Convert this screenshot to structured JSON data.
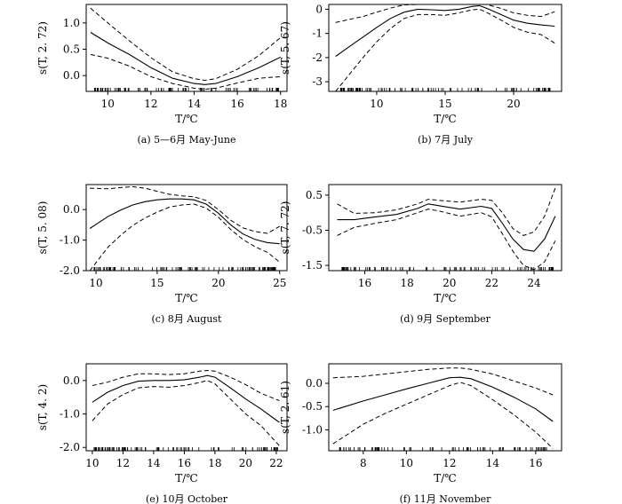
{
  "figure": {
    "x_axis_label": "T/℃"
  },
  "chart_data": [
    {
      "type": "line",
      "id": "a",
      "caption": "(a) 5—6月 May-June",
      "ylabel": "s(T, 2. 72)",
      "xlim": [
        9,
        18.3
      ],
      "ylim": [
        -0.3,
        1.35
      ],
      "xticks": [
        10,
        12,
        14,
        16,
        18
      ],
      "yticks": [
        {
          "v": 1.0,
          "label": "1.0"
        },
        {
          "v": 0.5,
          "label": "0.5"
        },
        {
          "v": 0.0,
          "label": "0.0"
        }
      ],
      "series": [
        {
          "name": "fit",
          "x": [
            9.2,
            10,
            11,
            12,
            13,
            14,
            14.5,
            15,
            16,
            17,
            18
          ],
          "values": [
            0.82,
            0.62,
            0.4,
            0.15,
            -0.05,
            -0.15,
            -0.17,
            -0.15,
            -0.02,
            0.15,
            0.35
          ]
        },
        {
          "name": "upper",
          "x": [
            9.2,
            10,
            11,
            12,
            13,
            14,
            14.5,
            15,
            16,
            17,
            18
          ],
          "values": [
            1.28,
            1.0,
            0.66,
            0.34,
            0.07,
            -0.06,
            -0.09,
            -0.06,
            0.12,
            0.38,
            0.72
          ]
        },
        {
          "name": "lower",
          "x": [
            9.2,
            10,
            11,
            12,
            13,
            14,
            14.5,
            15,
            16,
            17,
            18
          ],
          "values": [
            0.4,
            0.33,
            0.18,
            -0.02,
            -0.15,
            -0.24,
            -0.26,
            -0.24,
            -0.14,
            -0.05,
            -0.02
          ]
        }
      ],
      "rug": {
        "from": 9.3,
        "to": 18.0,
        "count": 95
      }
    },
    {
      "type": "line",
      "id": "b",
      "caption": "(b) 7月 July",
      "ylabel": "s(T, 5. 67)",
      "xlim": [
        6.5,
        23.5
      ],
      "ylim": [
        -3.4,
        0.2
      ],
      "xticks": [
        10,
        15,
        20
      ],
      "yticks": [
        {
          "v": 0,
          "label": "0"
        },
        {
          "v": -1,
          "label": "-1"
        },
        {
          "v": -2,
          "label": "-2"
        },
        {
          "v": -3,
          "label": "-3"
        }
      ],
      "series": [
        {
          "name": "fit",
          "x": [
            7,
            8,
            9,
            10,
            11,
            12,
            13,
            14,
            15,
            16,
            17,
            17.5,
            18,
            19,
            20,
            21,
            22,
            23
          ],
          "values": [
            -1.95,
            -1.55,
            -1.15,
            -0.75,
            -0.38,
            -0.12,
            0.0,
            -0.02,
            -0.05,
            0.0,
            0.12,
            0.15,
            0.05,
            -0.2,
            -0.45,
            -0.58,
            -0.65,
            -0.7
          ]
        },
        {
          "name": "upper",
          "x": [
            7,
            8,
            9,
            10,
            11,
            12,
            13,
            14,
            15,
            16,
            17,
            17.5,
            18,
            19,
            20,
            21,
            22,
            23
          ],
          "values": [
            -0.55,
            -0.42,
            -0.3,
            -0.12,
            0.05,
            0.18,
            0.25,
            0.25,
            0.2,
            0.2,
            0.25,
            0.28,
            0.2,
            0.05,
            -0.15,
            -0.25,
            -0.3,
            -0.1
          ]
        },
        {
          "name": "lower",
          "x": [
            7,
            8,
            9,
            10,
            11,
            12,
            13,
            14,
            15,
            16,
            17,
            17.5,
            18,
            19,
            20,
            21,
            22,
            23
          ],
          "values": [
            -3.4,
            -2.7,
            -2.0,
            -1.35,
            -0.8,
            -0.38,
            -0.22,
            -0.22,
            -0.25,
            -0.15,
            -0.02,
            0.0,
            -0.12,
            -0.42,
            -0.75,
            -0.95,
            -1.05,
            -1.4
          ]
        }
      ],
      "rug": {
        "from": 7.2,
        "to": 22.8,
        "count": 110
      }
    },
    {
      "type": "line",
      "id": "c",
      "caption": "(c) 8月 August",
      "ylabel": "s(T, 5. 08)",
      "xlim": [
        9.2,
        25.6
      ],
      "ylim": [
        -2.0,
        0.82
      ],
      "xticks": [
        10,
        15,
        20,
        25
      ],
      "yticks": [
        {
          "v": 0.0,
          "label": "0.0"
        },
        {
          "v": -1.0,
          "label": "-1.0"
        },
        {
          "v": -2.0,
          "label": "-2.0"
        }
      ],
      "series": [
        {
          "name": "fit",
          "x": [
            9.5,
            11,
            12,
            13,
            14,
            15,
            16,
            17,
            18,
            19,
            20,
            21,
            22,
            23,
            24,
            25
          ],
          "values": [
            -0.62,
            -0.22,
            -0.02,
            0.15,
            0.26,
            0.32,
            0.35,
            0.35,
            0.32,
            0.18,
            -0.12,
            -0.5,
            -0.8,
            -0.98,
            -1.08,
            -1.12
          ]
        },
        {
          "name": "upper",
          "x": [
            9.5,
            11,
            12,
            13,
            14,
            15,
            16,
            17,
            18,
            19,
            20,
            21,
            22,
            23,
            24,
            25
          ],
          "values": [
            0.7,
            0.68,
            0.72,
            0.75,
            0.7,
            0.6,
            0.5,
            0.45,
            0.42,
            0.3,
            0.0,
            -0.35,
            -0.6,
            -0.72,
            -0.78,
            -0.55
          ]
        },
        {
          "name": "lower",
          "x": [
            9.5,
            11,
            12,
            13,
            14,
            15,
            16,
            17,
            18,
            19,
            20,
            21,
            22,
            23,
            24,
            25
          ],
          "values": [
            -2.0,
            -1.22,
            -0.85,
            -0.52,
            -0.28,
            -0.08,
            0.08,
            0.15,
            0.18,
            0.05,
            -0.25,
            -0.65,
            -0.98,
            -1.22,
            -1.4,
            -1.72
          ]
        }
      ],
      "rug": {
        "from": 9.7,
        "to": 24.8,
        "count": 120
      }
    },
    {
      "type": "line",
      "id": "d",
      "caption": "(d) 9月 September",
      "ylabel": "s(T, 7. 72)",
      "xlim": [
        14.3,
        25.3
      ],
      "ylim": [
        -1.65,
        0.8
      ],
      "xticks": [
        16,
        18,
        20,
        22,
        24
      ],
      "yticks": [
        {
          "v": 0.5,
          "label": "0.5"
        },
        {
          "v": -0.5,
          "label": "-0.5"
        },
        {
          "v": -1.5,
          "label": "-1.5"
        }
      ],
      "series": [
        {
          "name": "fit",
          "x": [
            14.7,
            15.5,
            16.5,
            17.5,
            18.5,
            19.0,
            19.5,
            20.5,
            21.5,
            22.0,
            22.5,
            23.0,
            23.5,
            24.0,
            24.5,
            25.0
          ],
          "values": [
            -0.2,
            -0.2,
            -0.12,
            -0.05,
            0.12,
            0.25,
            0.2,
            0.1,
            0.18,
            0.12,
            -0.3,
            -0.75,
            -1.05,
            -1.1,
            -0.75,
            -0.1
          ]
        },
        {
          "name": "upper",
          "x": [
            14.7,
            15.5,
            16.5,
            17.5,
            18.5,
            19.0,
            19.5,
            20.5,
            21.5,
            22.0,
            22.5,
            23.0,
            23.5,
            24.0,
            24.5,
            25.0
          ],
          "values": [
            0.25,
            -0.02,
            0.0,
            0.08,
            0.25,
            0.38,
            0.35,
            0.3,
            0.38,
            0.35,
            0.0,
            -0.45,
            -0.65,
            -0.55,
            -0.1,
            0.7
          ]
        },
        {
          "name": "lower",
          "x": [
            14.7,
            15.5,
            16.5,
            17.5,
            18.5,
            19.0,
            19.5,
            20.5,
            21.5,
            22.0,
            22.5,
            23.0,
            23.5,
            24.0,
            24.5,
            25.0
          ],
          "values": [
            -0.65,
            -0.42,
            -0.3,
            -0.2,
            0.0,
            0.1,
            0.05,
            -0.1,
            0.0,
            -0.12,
            -0.6,
            -1.1,
            -1.5,
            -1.62,
            -1.4,
            -0.8
          ]
        }
      ],
      "rug": {
        "from": 14.8,
        "to": 25.0,
        "count": 100
      }
    },
    {
      "type": "line",
      "id": "e",
      "caption": "(e) 10月 October",
      "ylabel": "s(T, 4. 2)",
      "xlim": [
        9.6,
        22.7
      ],
      "ylim": [
        -2.1,
        0.5
      ],
      "xticks": [
        10,
        12,
        14,
        16,
        18,
        20,
        22
      ],
      "yticks": [
        {
          "v": 0.0,
          "label": "0.0"
        },
        {
          "v": -1.0,
          "label": "-1.0"
        },
        {
          "v": -2.0,
          "label": "-2.0"
        }
      ],
      "series": [
        {
          "name": "fit",
          "x": [
            10,
            11,
            12,
            13,
            14,
            15,
            16,
            17,
            17.5,
            18,
            19,
            20,
            21,
            22.2
          ],
          "values": [
            -0.65,
            -0.35,
            -0.15,
            -0.02,
            0.0,
            0.0,
            0.02,
            0.1,
            0.15,
            0.1,
            -0.22,
            -0.55,
            -0.85,
            -1.25
          ]
        },
        {
          "name": "upper",
          "x": [
            10,
            11,
            12,
            13,
            14,
            15,
            16,
            17,
            17.5,
            18,
            19,
            20,
            21,
            22.2
          ],
          "values": [
            -0.15,
            -0.05,
            0.1,
            0.2,
            0.2,
            0.18,
            0.2,
            0.28,
            0.3,
            0.28,
            0.1,
            -0.12,
            -0.38,
            -0.6
          ]
        },
        {
          "name": "lower",
          "x": [
            10,
            11,
            12,
            13,
            14,
            15,
            16,
            17,
            17.5,
            18,
            19,
            20,
            21,
            22.2
          ],
          "values": [
            -1.2,
            -0.7,
            -0.42,
            -0.22,
            -0.18,
            -0.2,
            -0.15,
            -0.06,
            0.0,
            -0.1,
            -0.55,
            -1.0,
            -1.35,
            -1.95
          ]
        }
      ],
      "rug": {
        "from": 10.0,
        "to": 22.2,
        "count": 110
      }
    },
    {
      "type": "line",
      "id": "f",
      "caption": "(f) 11月 November",
      "ylabel": "s(T, 2. 61)",
      "xlim": [
        6.4,
        17.2
      ],
      "ylim": [
        -1.45,
        0.42
      ],
      "xticks": [
        8,
        10,
        12,
        14,
        16
      ],
      "yticks": [
        {
          "v": 0.0,
          "label": "0.0"
        },
        {
          "v": -0.5,
          "label": "-0.5"
        },
        {
          "v": -1.0,
          "label": "-1.0"
        }
      ],
      "series": [
        {
          "name": "fit",
          "x": [
            6.6,
            8,
            9,
            10,
            11,
            12,
            12.5,
            13,
            14,
            15,
            16,
            16.8
          ],
          "values": [
            -0.58,
            -0.38,
            -0.25,
            -0.12,
            0.0,
            0.12,
            0.13,
            0.1,
            -0.08,
            -0.3,
            -0.55,
            -0.82
          ]
        },
        {
          "name": "upper",
          "x": [
            6.6,
            8,
            9,
            10,
            11,
            12,
            12.5,
            13,
            14,
            15,
            16,
            16.8
          ],
          "values": [
            0.12,
            0.15,
            0.2,
            0.25,
            0.3,
            0.33,
            0.33,
            0.3,
            0.2,
            0.05,
            -0.1,
            -0.25
          ]
        },
        {
          "name": "lower",
          "x": [
            6.6,
            8,
            9,
            10,
            11,
            12,
            12.5,
            13,
            14,
            15,
            16,
            16.8
          ],
          "values": [
            -1.3,
            -0.88,
            -0.65,
            -0.45,
            -0.25,
            -0.05,
            0.02,
            -0.05,
            -0.35,
            -0.68,
            -1.05,
            -1.4
          ]
        }
      ],
      "rug": {
        "from": 6.8,
        "to": 16.6,
        "count": 90
      }
    }
  ]
}
